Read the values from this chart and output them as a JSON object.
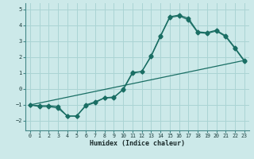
{
  "title": "",
  "xlabel": "Humidex (Indice chaleur)",
  "ylabel": "",
  "background_color": "#cce9e9",
  "grid_color": "#aad4d4",
  "line_color": "#1a6e64",
  "xlim": [
    -0.5,
    23.5
  ],
  "ylim": [
    -2.6,
    5.4
  ],
  "yticks": [
    -2,
    -1,
    0,
    1,
    2,
    3,
    4,
    5
  ],
  "xticks": [
    0,
    1,
    2,
    3,
    4,
    5,
    6,
    7,
    8,
    9,
    10,
    11,
    12,
    13,
    14,
    15,
    16,
    17,
    18,
    19,
    20,
    21,
    22,
    23
  ],
  "series1_x": [
    0,
    1,
    2,
    3,
    4,
    5,
    6,
    7,
    8,
    9,
    10,
    11,
    12,
    13,
    14,
    15,
    16,
    17,
    18,
    19,
    20,
    21,
    22,
    23
  ],
  "series1_y": [
    -1.0,
    -1.1,
    -1.1,
    -1.2,
    -1.7,
    -1.7,
    -1.0,
    -0.8,
    -0.55,
    -0.55,
    -0.0,
    1.05,
    1.1,
    2.1,
    3.35,
    4.55,
    4.65,
    4.45,
    3.6,
    3.55,
    3.7,
    3.35,
    2.6,
    1.8
  ],
  "series2_x": [
    0,
    1,
    2,
    3,
    4,
    5,
    6,
    7,
    8,
    9,
    10,
    11,
    12,
    13,
    14,
    15,
    16,
    17,
    18,
    19,
    20,
    21,
    22,
    23
  ],
  "series2_y": [
    -1.0,
    -1.05,
    -1.05,
    -1.1,
    -1.7,
    -1.7,
    -1.05,
    -0.85,
    -0.55,
    -0.5,
    -0.05,
    1.0,
    1.1,
    2.05,
    3.3,
    4.5,
    4.6,
    4.35,
    3.55,
    3.5,
    3.65,
    3.3,
    2.55,
    1.75
  ],
  "series3_x": [
    0,
    23
  ],
  "series3_y": [
    -1.0,
    1.8
  ]
}
